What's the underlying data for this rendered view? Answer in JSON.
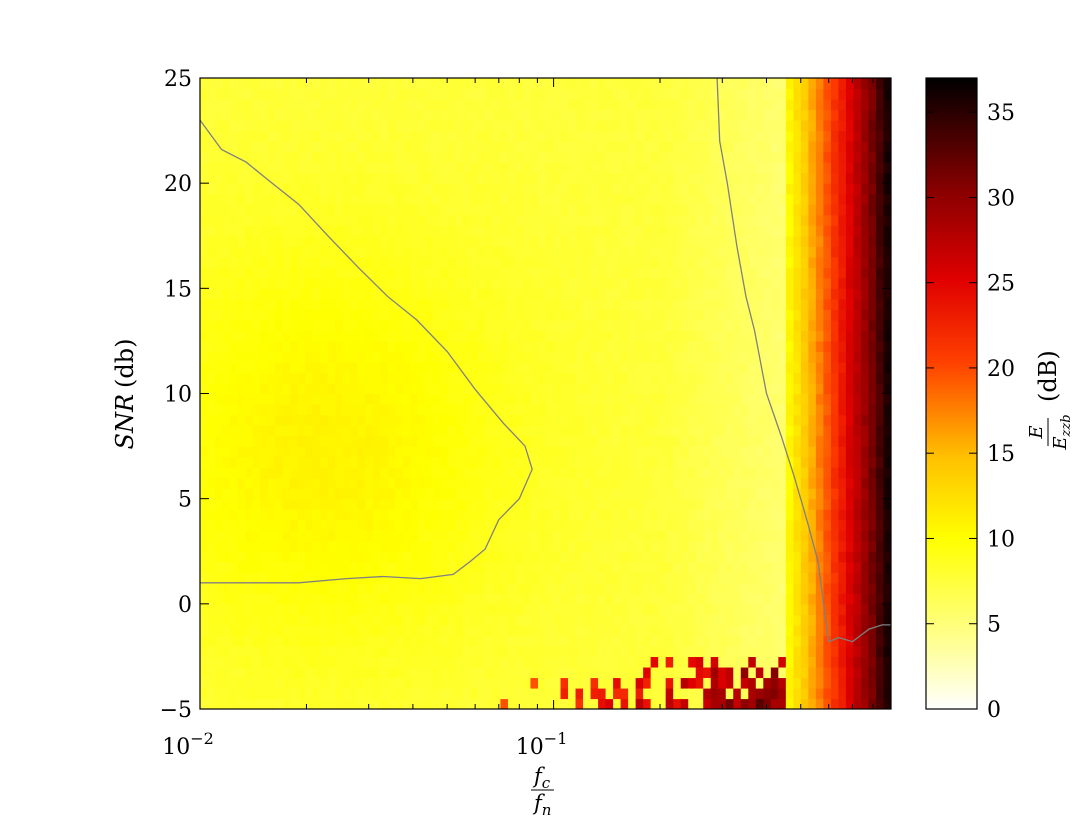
{
  "chart_data": {
    "type": "heatmap",
    "title": "",
    "xlabel": {
      "numerator": "f",
      "numerator_sub": "c",
      "denominator": "f",
      "denominator_sub": "n"
    },
    "ylabel": {
      "var": "SNR",
      "unit": "(db)"
    },
    "x_scale": "log",
    "xlim": [
      0.01,
      0.9
    ],
    "ylim": [
      -5,
      25
    ],
    "x_ticks": [
      {
        "value": 0.01,
        "base": "10",
        "exp": "−2"
      },
      {
        "value": 0.1,
        "base": "10",
        "exp": "−1"
      }
    ],
    "y_ticks": [
      {
        "value": -5,
        "label": "−5"
      },
      {
        "value": 0,
        "label": "0"
      },
      {
        "value": 5,
        "label": "5"
      },
      {
        "value": 10,
        "label": "10"
      },
      {
        "value": 15,
        "label": "15"
      },
      {
        "value": 20,
        "label": "20"
      },
      {
        "value": 25,
        "label": "25"
      }
    ],
    "colorbar": {
      "label": {
        "numerator": "E",
        "denominator": "E",
        "denominator_sub": "zzb",
        "unit": "(dB)"
      },
      "range": [
        0,
        37
      ],
      "ticks": [
        {
          "value": 0,
          "label": "0"
        },
        {
          "value": 5,
          "label": "5"
        },
        {
          "value": 10,
          "label": "10"
        },
        {
          "value": 15,
          "label": "15"
        },
        {
          "value": 20,
          "label": "20"
        },
        {
          "value": 25,
          "label": "25"
        },
        {
          "value": 30,
          "label": "30"
        },
        {
          "value": 35,
          "label": "35"
        }
      ],
      "colormap": "hot_r"
    },
    "contours": [
      {
        "level": 10,
        "color": "#808080",
        "points": [
          [
            0.01,
            23.0
          ],
          [
            0.0115,
            21.6
          ],
          [
            0.0135,
            21.0
          ],
          [
            0.016,
            20.0
          ],
          [
            0.019,
            19.0
          ],
          [
            0.023,
            17.5
          ],
          [
            0.028,
            16.0
          ],
          [
            0.034,
            14.6
          ],
          [
            0.041,
            13.5
          ],
          [
            0.05,
            12.0
          ],
          [
            0.06,
            10.2
          ],
          [
            0.072,
            8.6
          ],
          [
            0.083,
            7.5
          ],
          [
            0.087,
            6.4
          ],
          [
            0.08,
            5.0
          ],
          [
            0.07,
            4.0
          ],
          [
            0.064,
            2.6
          ],
          [
            0.058,
            2.0
          ],
          [
            0.052,
            1.4
          ],
          [
            0.042,
            1.2
          ],
          [
            0.033,
            1.3
          ],
          [
            0.026,
            1.2
          ],
          [
            0.019,
            1.0
          ],
          [
            0.013,
            1.0
          ],
          [
            0.01,
            1.0
          ]
        ]
      },
      {
        "level": 10,
        "color": "#808080",
        "points": [
          [
            0.29,
            25.0
          ],
          [
            0.295,
            22.0
          ],
          [
            0.31,
            20.0
          ],
          [
            0.33,
            17.0
          ],
          [
            0.35,
            14.6
          ],
          [
            0.37,
            13.0
          ],
          [
            0.4,
            10.0
          ],
          [
            0.44,
            8.0
          ],
          [
            0.48,
            6.0
          ],
          [
            0.52,
            4.0
          ],
          [
            0.56,
            2.0
          ],
          [
            0.58,
            0.0
          ],
          [
            0.6,
            -1.8
          ],
          [
            0.64,
            -1.6
          ],
          [
            0.7,
            -1.8
          ],
          [
            0.78,
            -1.2
          ],
          [
            0.85,
            -1.0
          ],
          [
            0.9,
            -1.0
          ]
        ]
      }
    ],
    "value_model_description": ""
  }
}
